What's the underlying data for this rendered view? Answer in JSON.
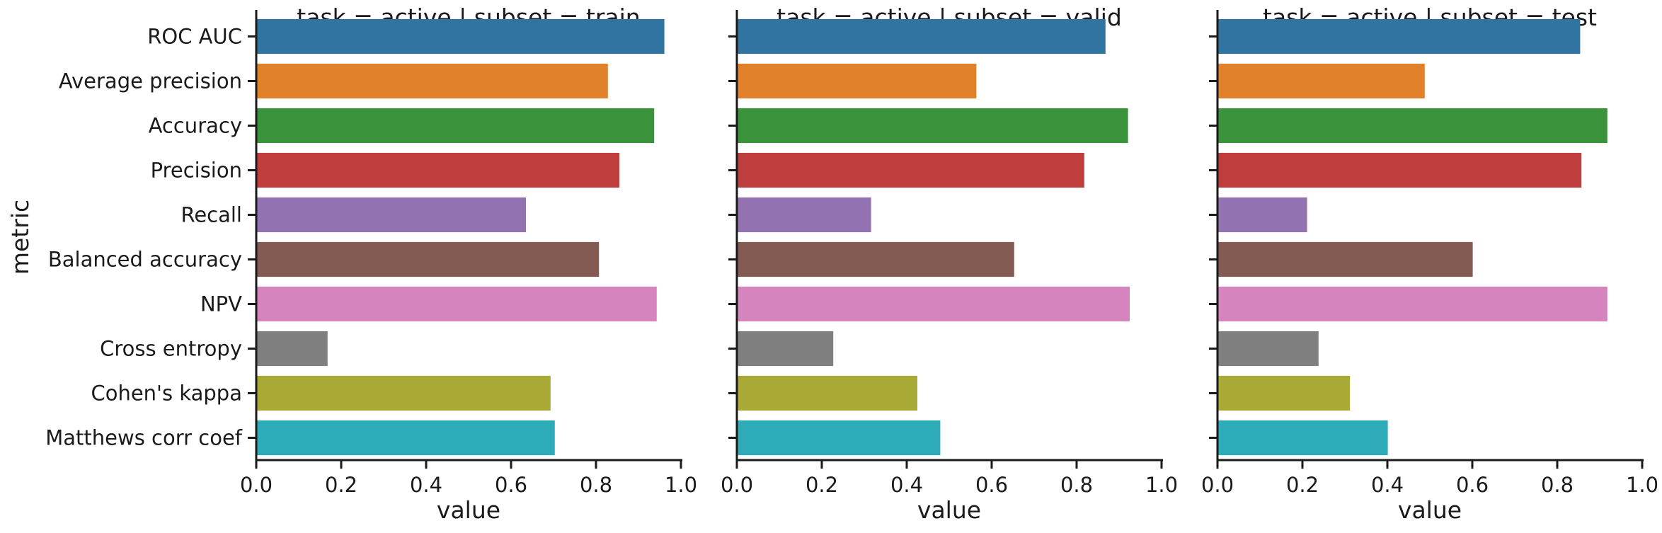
{
  "chart_data": {
    "type": "bar",
    "orientation": "horizontal",
    "categories": [
      "ROC AUC",
      "Average precision",
      "Accuracy",
      "Precision",
      "Recall",
      "Balanced accuracy",
      "NPV",
      "Cross entropy",
      "Cohen's kappa",
      "Matthews corr coef"
    ],
    "colors": [
      "#3274a1",
      "#e1812c",
      "#3a923a",
      "#c03d3e",
      "#9372b2",
      "#845b53",
      "#d684bd",
      "#7f7f7f",
      "#a9aa35",
      "#2eabb8"
    ],
    "ylabel": "metric",
    "xlabel": "value",
    "xlim": [
      0.0,
      1.0
    ],
    "xticks": [
      "0.0",
      "0.2",
      "0.4",
      "0.6",
      "0.8",
      "1.0"
    ],
    "grid": false,
    "panels": [
      {
        "title": "task = active | subset = train",
        "values": [
          0.961,
          0.828,
          0.937,
          0.855,
          0.635,
          0.807,
          0.943,
          0.168,
          0.693,
          0.703
        ]
      },
      {
        "title": "task = active | subset = valid",
        "values": [
          0.868,
          0.564,
          0.921,
          0.818,
          0.316,
          0.653,
          0.925,
          0.227,
          0.425,
          0.479
        ]
      },
      {
        "title": "task = active | subset = test",
        "values": [
          0.854,
          0.488,
          0.918,
          0.857,
          0.211,
          0.601,
          0.918,
          0.238,
          0.312,
          0.401
        ]
      }
    ]
  }
}
